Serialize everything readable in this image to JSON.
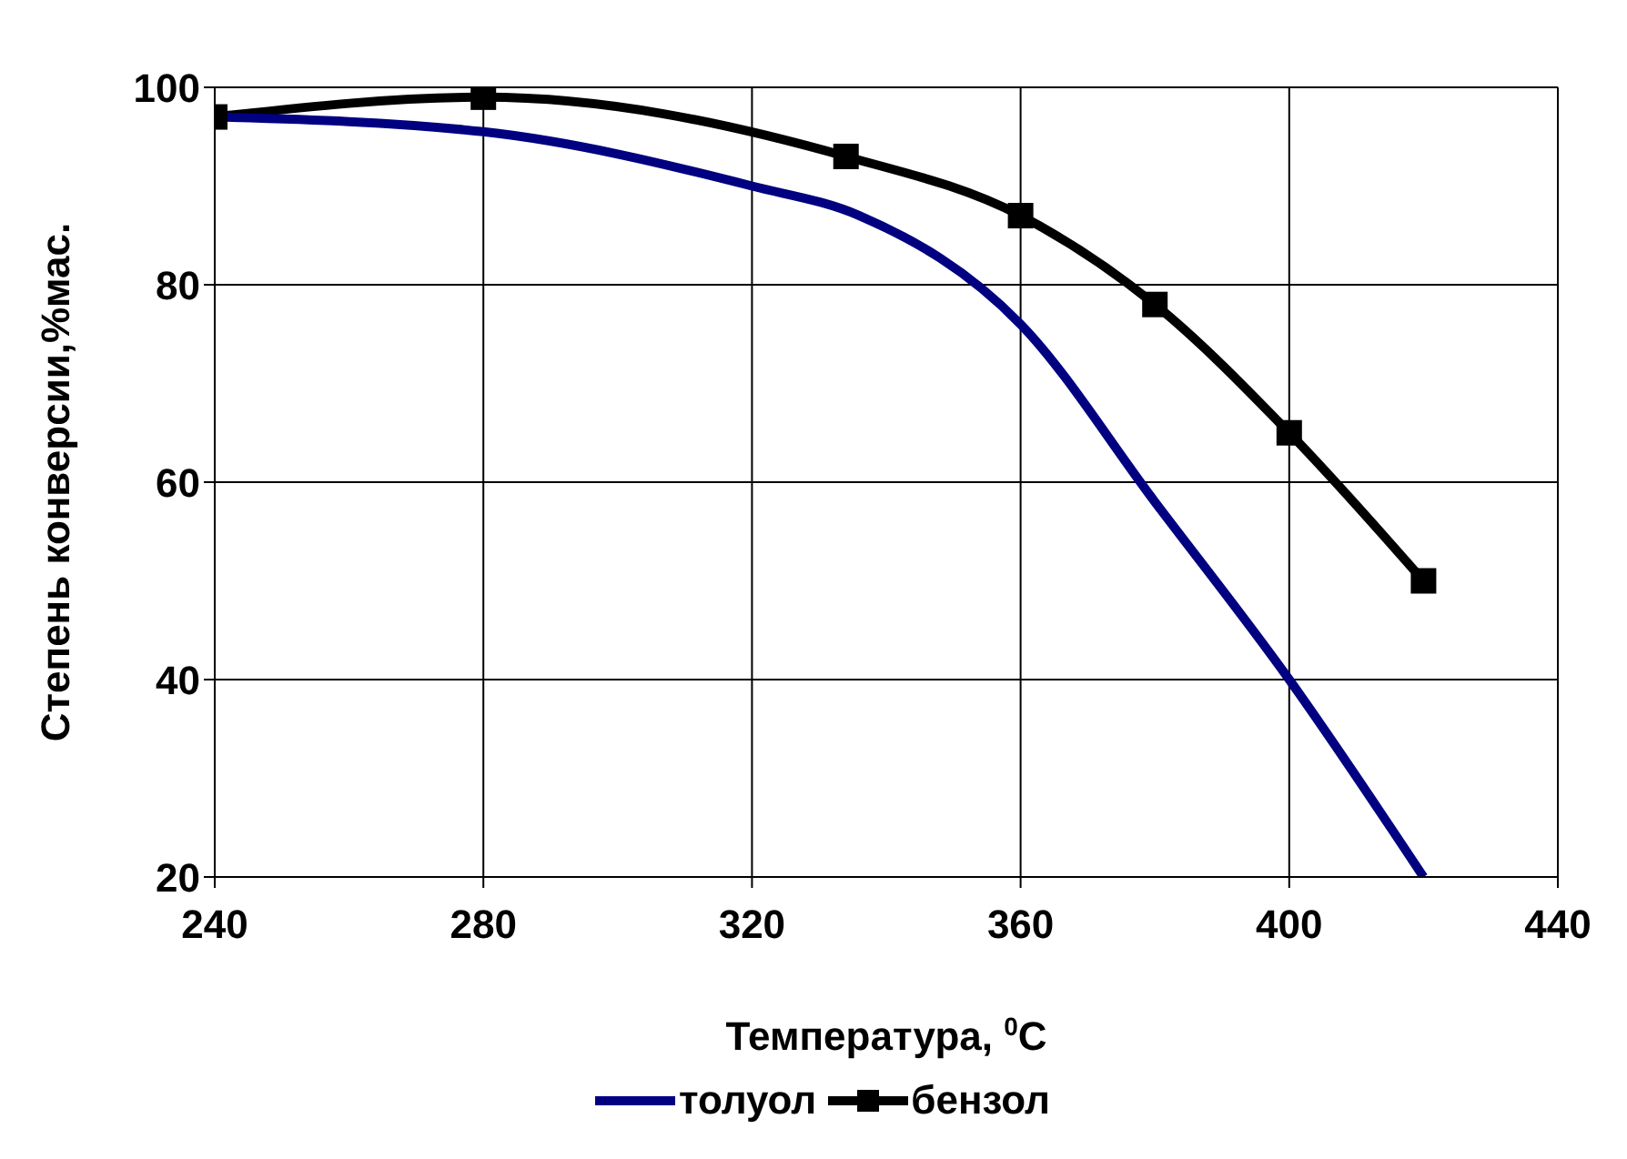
{
  "chart_data": {
    "type": "line",
    "xlabel": "Температура, $^{0}$C",
    "ylabel": "Степень конверсии,%мас.",
    "xlim": [
      240,
      440
    ],
    "xticks": [
      240,
      280,
      320,
      360,
      400,
      440
    ],
    "ylim": [
      20,
      100
    ],
    "yticks": [
      20,
      40,
      60,
      80,
      100
    ],
    "grid": true,
    "legend": "bottom",
    "series": [
      {
        "name": "толуол",
        "color": "#000080",
        "marker": "none",
        "x": [
          240,
          280,
          320,
          336,
          360,
          380,
          400,
          420
        ],
        "values": [
          97,
          95.5,
          90,
          87,
          76,
          58,
          40,
          20
        ]
      },
      {
        "name": "бензол",
        "color": "#000000",
        "marker": "square",
        "x": [
          240,
          280,
          334,
          360,
          380,
          400,
          420
        ],
        "values": [
          97,
          99,
          93,
          87,
          78,
          65,
          50
        ]
      }
    ]
  }
}
